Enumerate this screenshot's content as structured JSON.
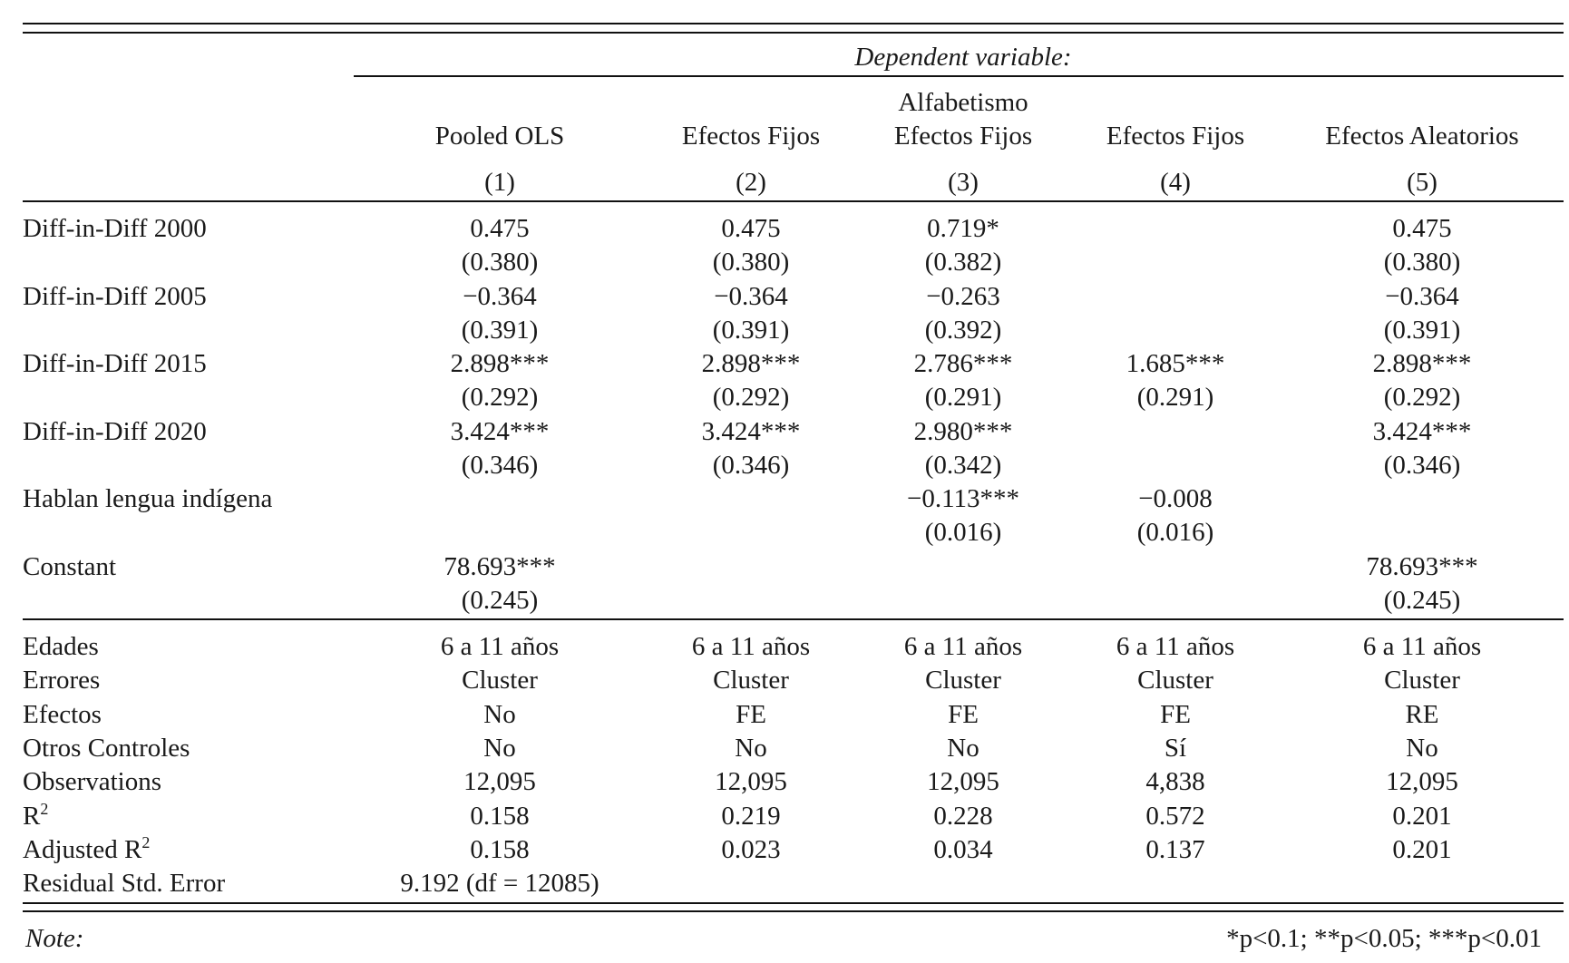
{
  "header": {
    "dependent_variable_label": "Dependent variable:",
    "dependent_variable": "Alfabetismo",
    "models": [
      "Pooled OLS",
      "Efectos Fijos",
      "Efectos Fijos",
      "Efectos Fijos",
      "Efectos Aleatorios"
    ],
    "numbers": [
      "(1)",
      "(2)",
      "(3)",
      "(4)",
      "(5)"
    ]
  },
  "coefficients": [
    {
      "label": "Diff-in-Diff 2000",
      "estimates": [
        "0.475",
        "0.475",
        "0.719*",
        "",
        "0.475"
      ],
      "se": [
        "(0.380)",
        "(0.380)",
        "(0.382)",
        "",
        "(0.380)"
      ]
    },
    {
      "label": "Diff-in-Diff 2005",
      "estimates": [
        "−0.364",
        "−0.364",
        "−0.263",
        "",
        "−0.364"
      ],
      "se": [
        "(0.391)",
        "(0.391)",
        "(0.392)",
        "",
        "(0.391)"
      ]
    },
    {
      "label": "Diff-in-Diff 2015",
      "estimates": [
        "2.898***",
        "2.898***",
        "2.786***",
        "1.685***",
        "2.898***"
      ],
      "se": [
        "(0.292)",
        "(0.292)",
        "(0.291)",
        "(0.291)",
        "(0.292)"
      ]
    },
    {
      "label": "Diff-in-Diff 2020",
      "estimates": [
        "3.424***",
        "3.424***",
        "2.980***",
        "",
        "3.424***"
      ],
      "se": [
        "(0.346)",
        "(0.346)",
        "(0.342)",
        "",
        "(0.346)"
      ]
    },
    {
      "label": "Hablan lengua indígena",
      "estimates": [
        "",
        "",
        "−0.113***",
        "−0.008",
        ""
      ],
      "se": [
        "",
        "",
        "(0.016)",
        "(0.016)",
        ""
      ]
    },
    {
      "label": "Constant",
      "estimates": [
        "78.693***",
        "",
        "",
        "",
        "78.693***"
      ],
      "se": [
        "(0.245)",
        "",
        "",
        "",
        "(0.245)"
      ]
    }
  ],
  "stats": [
    {
      "label": "Edades",
      "values": [
        "6 a 11 años",
        "6 a 11 años",
        "6 a 11 años",
        "6 a 11 años",
        "6 a 11 años"
      ]
    },
    {
      "label": "Errores",
      "values": [
        "Cluster",
        "Cluster",
        "Cluster",
        "Cluster",
        "Cluster"
      ]
    },
    {
      "label": "Efectos",
      "values": [
        "No",
        "FE",
        "FE",
        "FE",
        "RE"
      ]
    },
    {
      "label": "Otros Controles",
      "values": [
        "No",
        "No",
        "No",
        "Sí",
        "No"
      ]
    },
    {
      "label": "Observations",
      "values": [
        "12,095",
        "12,095",
        "12,095",
        "4,838",
        "12,095"
      ]
    },
    {
      "label": "R²",
      "values": [
        "0.158",
        "0.219",
        "0.228",
        "0.572",
        "0.201"
      ]
    },
    {
      "label": "Adjusted R²",
      "values": [
        "0.158",
        "0.023",
        "0.034",
        "0.137",
        "0.201"
      ]
    }
  ],
  "residual": {
    "label": "Residual Std. Error",
    "value": "9.192 (df = 12085)"
  },
  "note": {
    "label": "Note:",
    "text": "*p<0.1; **p<0.05; ***p<0.01"
  }
}
